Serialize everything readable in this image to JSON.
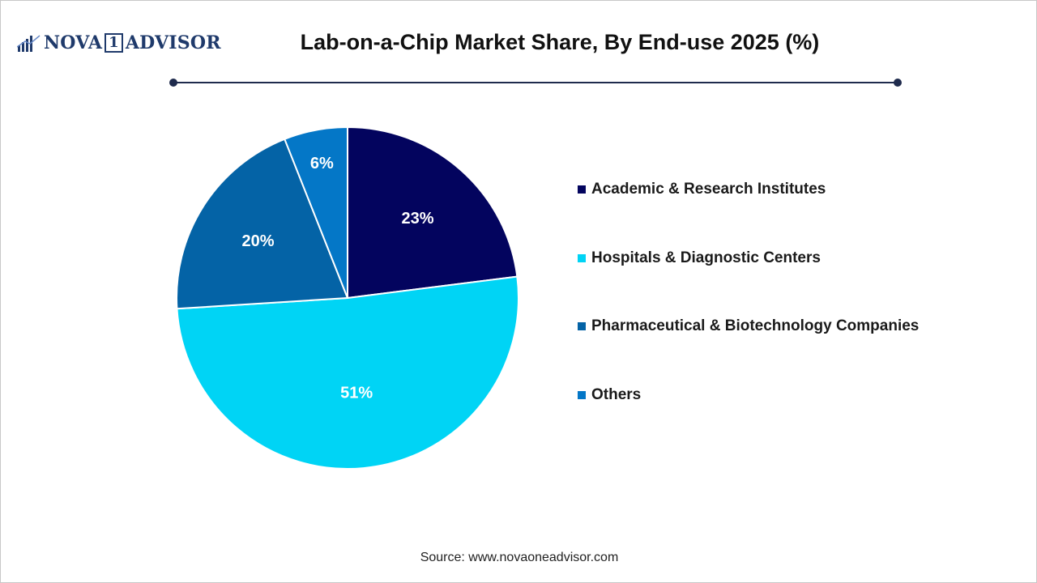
{
  "brand": {
    "name_left": "NOVA",
    "name_mid": "1",
    "name_right": "ADVISOR"
  },
  "colors": {
    "brand": "#1f3a6b",
    "rule": "#1f2b4d"
  },
  "chart_data": {
    "type": "pie",
    "title": "Lab-on-a-Chip Market Share, By End-use 2025 (%)",
    "slices": [
      {
        "name": "Academic & Research Institutes",
        "value": 23,
        "label": "23%",
        "color": "#03045e"
      },
      {
        "name": "Hospitals & Diagnostic Centers",
        "value": 51,
        "label": "51%",
        "color": "#00d4f5"
      },
      {
        "name": "Pharmaceutical & Biotechnology Companies",
        "value": 20,
        "label": "20%",
        "color": "#0463a6"
      },
      {
        "name": "Others",
        "value": 6,
        "label": "6%",
        "color": "#0477c7"
      }
    ],
    "legend_position": "right",
    "start_angle": "12 o'clock",
    "direction": "clockwise"
  },
  "source": "Source: www.novaoneadvisor.com"
}
